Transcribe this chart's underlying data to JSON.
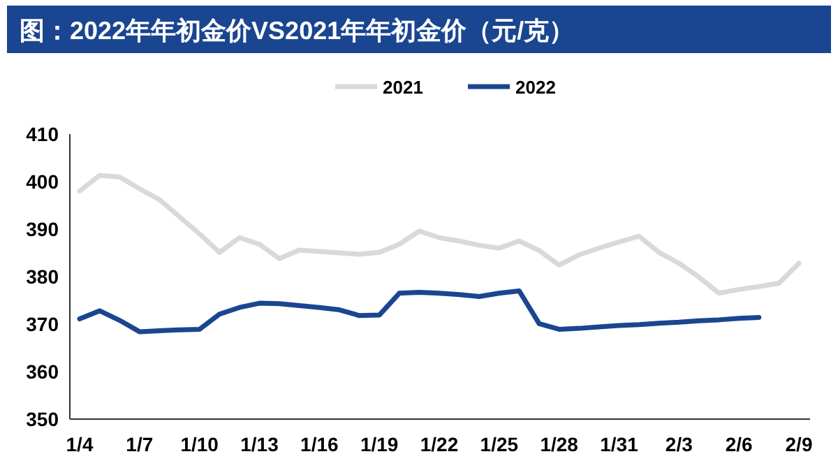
{
  "chart_data": {
    "type": "line",
    "title": "图：2022年年初金价VS2021年年初金价（元/克）",
    "categories": [
      "1/4",
      null,
      null,
      "1/7",
      null,
      null,
      "1/10",
      null,
      null,
      "1/13",
      null,
      null,
      "1/16",
      null,
      null,
      "1/19",
      null,
      null,
      "1/22",
      null,
      null,
      "1/25",
      null,
      null,
      "1/28",
      null,
      null,
      "1/31",
      null,
      null,
      "2/3",
      null,
      null,
      "2/6",
      null,
      null,
      "2/9"
    ],
    "series": [
      {
        "name": "2021",
        "color": "#d9d9d9",
        "values": [
          398.0,
          401.3,
          401.0,
          398.5,
          396.2,
          392.6,
          389.0,
          385.1,
          388.2,
          386.8,
          383.8,
          385.6,
          385.3,
          385.0,
          384.7,
          385.1,
          386.8,
          389.6,
          388.2,
          387.5,
          386.6,
          386.0,
          387.5,
          385.5,
          382.4,
          384.6,
          386.0,
          387.3,
          388.5,
          385.1,
          382.8,
          379.9,
          376.5,
          377.3,
          377.9,
          378.6,
          382.8
        ]
      },
      {
        "name": "2022",
        "color": "#1a4590",
        "values": [
          371.1,
          372.8,
          370.8,
          368.4,
          368.6,
          368.8,
          368.9,
          372.1,
          373.5,
          374.4,
          374.3,
          373.9,
          373.5,
          373.0,
          371.8,
          371.9,
          376.5,
          376.7,
          376.5,
          376.2,
          375.8,
          376.5,
          377.0,
          370.1,
          368.9,
          369.1,
          369.4,
          369.7,
          369.9,
          370.2,
          370.4,
          370.7,
          370.9,
          371.2,
          371.4,
          null,
          null
        ]
      }
    ],
    "ylim": [
      350,
      410
    ],
    "yticks": [
      350,
      360,
      370,
      380,
      390,
      400,
      410
    ],
    "legend": "top",
    "grid": false,
    "marker": "none",
    "line_style": "solid"
  }
}
